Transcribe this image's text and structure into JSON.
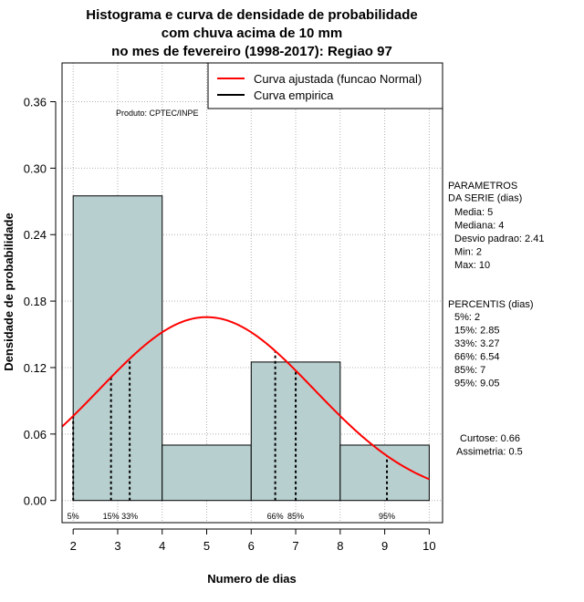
{
  "chart_data": {
    "type": "bar",
    "title_lines": [
      "Histograma e curva de densidade de probabilidade",
      "com chuva acima de 10 mm",
      "no mes de fevereiro (1998-2017): Regiao 97"
    ],
    "xlabel": "Numero de dias",
    "ylabel": "Densidade de probabilidade",
    "xlim": [
      1.75,
      10.3
    ],
    "ylim": [
      -0.02,
      0.395
    ],
    "x_ticks": [
      2,
      3,
      4,
      5,
      6,
      7,
      8,
      9,
      10
    ],
    "y_ticks": [
      0.0,
      0.06,
      0.12,
      0.18,
      0.24,
      0.3,
      0.36
    ],
    "y_tick_labels": [
      "0.00",
      "0.06",
      "0.12",
      "0.18",
      "0.24",
      "0.30",
      "0.36"
    ],
    "bins": [
      {
        "from": 2,
        "to": 4,
        "density": 0.275
      },
      {
        "from": 4,
        "to": 6,
        "density": 0.05
      },
      {
        "from": 6,
        "to": 8,
        "density": 0.125
      },
      {
        "from": 8,
        "to": 10,
        "density": 0.05
      }
    ],
    "bar_color": "#b8cfcf",
    "fit": {
      "name": "Curva ajustada (funcao Normal)",
      "mean": 5,
      "sd": 2.41,
      "color": "#ff0000"
    },
    "empirical_label": "Curva empirica",
    "percentiles": [
      {
        "label": "5%",
        "x": 2
      },
      {
        "label": "15%",
        "x": 2.85
      },
      {
        "label": "33%",
        "x": 3.27
      },
      {
        "label": "66%",
        "x": 6.54
      },
      {
        "label": "85%",
        "x": 7
      },
      {
        "label": "95%",
        "x": 9.05
      }
    ],
    "credit": "Produto: CPTEC/INPE",
    "params": {
      "header": [
        "PARAMETROS",
        "DA SERIE (dias)"
      ],
      "lines": [
        "Media: 5",
        "Mediana: 4",
        "Desvio padrao: 2.41",
        "Min: 2",
        "Max: 10"
      ]
    },
    "percentis_panel": {
      "header": "PERCENTIS (dias)",
      "lines": [
        "5%: 2",
        "15%: 2.85",
        "33%: 3.27",
        "66%: 6.54",
        "85%: 7",
        "95%: 9.05"
      ]
    },
    "shape_stats": [
      "Curtose: 0.66",
      "Assimetria: 0.5"
    ]
  }
}
